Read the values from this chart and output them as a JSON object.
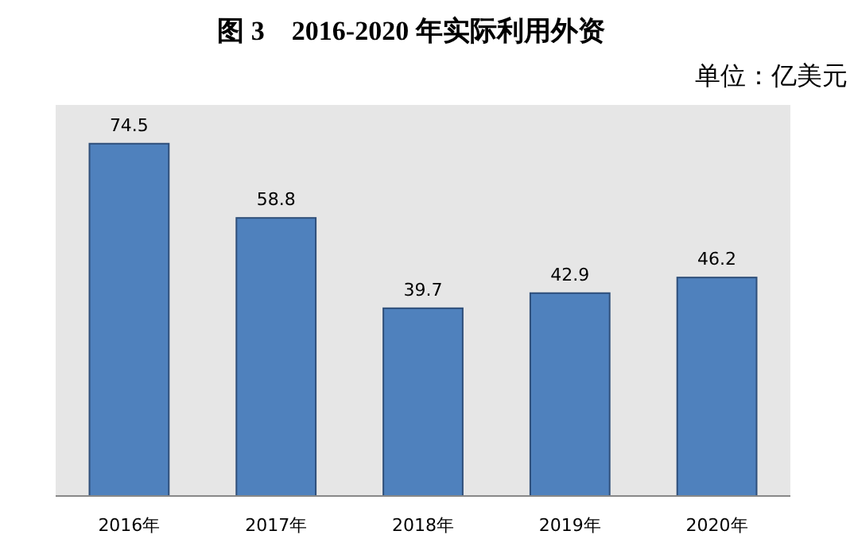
{
  "chart_data": {
    "type": "bar",
    "title": "图 3　2016-2020 年实际利用外资",
    "subtitle": "单位：亿美元",
    "categories": [
      "2016年",
      "2017年",
      "2018年",
      "2019年",
      "2020年"
    ],
    "values": [
      74.5,
      58.8,
      39.7,
      42.9,
      46.2
    ],
    "color": "#4f81bd",
    "data_labels": true
  }
}
